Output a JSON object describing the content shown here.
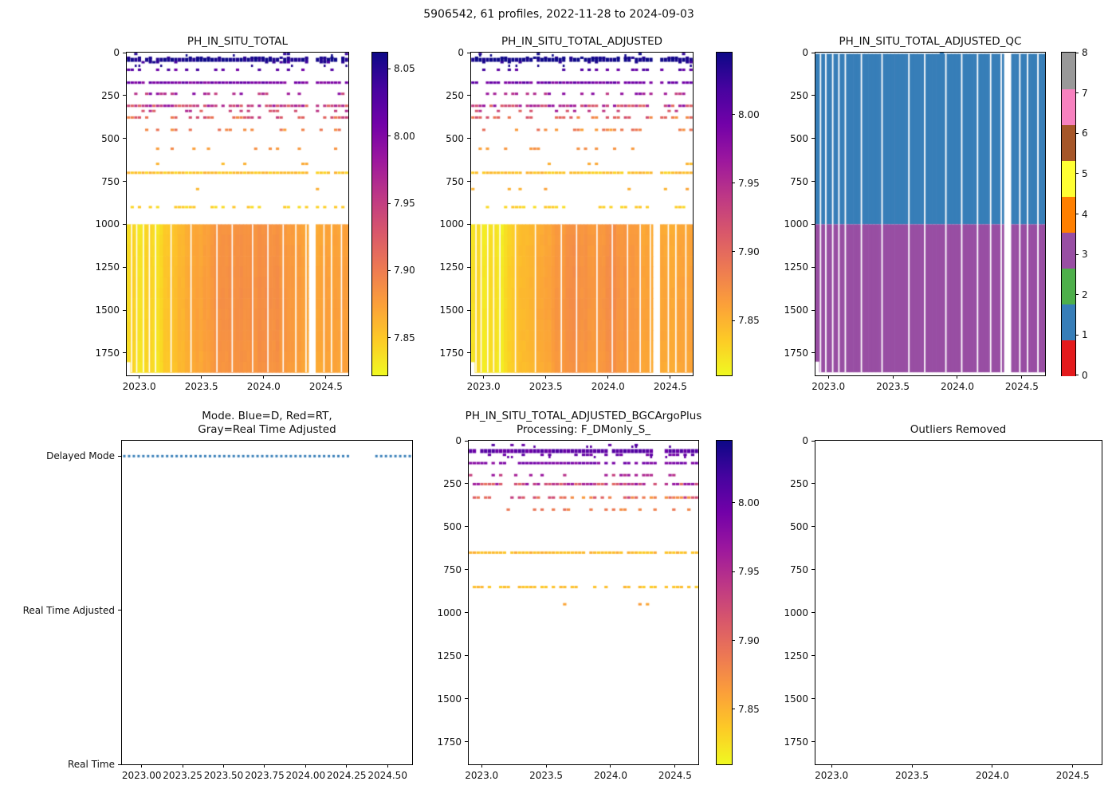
{
  "figure": {
    "title": "5906542, 61 profiles, 2022-11-28 to 2024-09-03"
  },
  "colors": {
    "plasma_stops": [
      [
        0,
        "#0d0887"
      ],
      [
        0.111,
        "#46039f"
      ],
      [
        0.222,
        "#7201a8"
      ],
      [
        0.333,
        "#9c179e"
      ],
      [
        0.444,
        "#bd3786"
      ],
      [
        0.556,
        "#d8576b"
      ],
      [
        0.667,
        "#ed7953"
      ],
      [
        0.778,
        "#fb9f3a"
      ],
      [
        0.889,
        "#fdca26"
      ],
      [
        1,
        "#f0f921"
      ]
    ],
    "qc_palette": [
      "#e41a1c",
      "#377eb8",
      "#4daf4a",
      "#984ea3",
      "#ff7f00",
      "#ffff33",
      "#a65628",
      "#f781bf",
      "#999999"
    ],
    "mode_dot": "#377eb8"
  },
  "profiles": {
    "count": 61,
    "float_id": "5906542",
    "date_start": "2022-11-28",
    "date_end": "2024-09-03",
    "gap_fracs": [
      0.022,
      0.045,
      0.075,
      0.102,
      0.13,
      0.2,
      0.29,
      0.407,
      0.476,
      0.568,
      0.637,
      0.706,
      0.763,
      0.809,
      0.89,
      0.924,
      0.969
    ],
    "wide_gap": [
      0.822,
      0.855
    ]
  },
  "chart_data": [
    {
      "id": "ph_total",
      "type": "heatmap",
      "render": "ph_heatmap",
      "seed": 3,
      "title_lines": [
        "PH_IN_SITU_TOTAL"
      ],
      "xlim": [
        2022.9,
        2024.68
      ],
      "ylim": [
        0,
        1880
      ],
      "x_tick_values": [
        2023.0,
        2023.5,
        2024.0,
        2024.5
      ],
      "x_tick_labels": [
        "2023.0",
        "2023.5",
        "2024.0",
        "2024.5"
      ],
      "y_tick_values": [
        0,
        250,
        500,
        750,
        1000,
        1250,
        1500,
        1750
      ],
      "y_tick_labels": [
        "0",
        "250",
        "500",
        "750",
        "1000",
        "1250",
        "1500",
        "1750"
      ],
      "vmin": 7.822,
      "vmax": 8.062,
      "colorbar_tick_values": [
        8.05,
        8.0,
        7.95,
        7.9,
        7.85
      ],
      "colorbar_tick_labels": [
        "8.05",
        "8.00",
        "7.95",
        "7.90",
        "7.85"
      ],
      "bands": [
        {
          "depth": 8,
          "ph": 8.05,
          "density": 0.06,
          "jitter": 0.01,
          "px": 3
        },
        {
          "depth": 30,
          "ph": 8.052,
          "density": 0.4,
          "jitter": 0.012,
          "px": 3
        },
        {
          "depth": 42,
          "ph": 8.058,
          "density": 0.97,
          "jitter": 0.008,
          "px": 5
        },
        {
          "depth": 56,
          "ph": 8.045,
          "density": 0.3,
          "jitter": 0.015,
          "px": 3
        },
        {
          "depth": 100,
          "ph": 8.02,
          "density": 0.28,
          "jitter": 0.015,
          "px": 3
        },
        {
          "depth": 175,
          "ph": 8.005,
          "density": 0.88,
          "jitter": 0.015,
          "px": 3
        },
        {
          "depth": 240,
          "ph": 7.972,
          "density": 0.42,
          "jitter": 0.03,
          "px": 3
        },
        {
          "depth": 310,
          "ph": 7.952,
          "density": 0.9,
          "jitter": 0.04,
          "px": 3
        },
        {
          "depth": 340,
          "ph": 7.945,
          "density": 0.22,
          "jitter": 0.03,
          "px": 3
        },
        {
          "depth": 378,
          "ph": 7.915,
          "density": 0.55,
          "jitter": 0.035,
          "px": 3
        },
        {
          "depth": 450,
          "ph": 7.89,
          "density": 0.28,
          "jitter": 0.02,
          "px": 3
        },
        {
          "depth": 560,
          "ph": 7.882,
          "density": 0.12,
          "jitter": 0.01,
          "px": 3
        },
        {
          "depth": 648,
          "ph": 7.862,
          "density": 0.08,
          "jitter": 0.008,
          "px": 3
        },
        {
          "depth": 700,
          "ph": 7.853,
          "density": 0.92,
          "jitter": 0.012,
          "px": 3
        },
        {
          "depth": 795,
          "ph": 7.868,
          "density": 0.08,
          "jitter": 0.01,
          "px": 3
        },
        {
          "depth": 900,
          "ph": 7.845,
          "density": 0.5,
          "jitter": 0.008,
          "px": 3
        }
      ],
      "deep_block": {
        "top": 1000,
        "bottom": 1862,
        "first_col_bottom": 1800,
        "keypoints": [
          [
            0,
            7.833
          ],
          [
            0.03,
            7.846
          ],
          [
            0.06,
            7.828
          ],
          [
            0.1,
            7.843
          ],
          [
            0.14,
            7.831
          ],
          [
            0.18,
            7.85
          ],
          [
            0.23,
            7.858
          ],
          [
            0.3,
            7.866
          ],
          [
            0.38,
            7.878
          ],
          [
            0.47,
            7.885
          ],
          [
            0.56,
            7.882
          ],
          [
            0.64,
            7.887
          ],
          [
            0.72,
            7.878
          ],
          [
            0.8,
            7.872
          ],
          [
            0.87,
            7.869
          ],
          [
            0.94,
            7.872
          ],
          [
            1,
            7.874
          ]
        ]
      }
    },
    {
      "id": "ph_adj",
      "type": "heatmap",
      "render": "ph_heatmap",
      "seed": 11,
      "title_lines": [
        "PH_IN_SITU_TOTAL_ADJUSTED"
      ],
      "xlim": [
        2022.9,
        2024.68
      ],
      "ylim": [
        0,
        1880
      ],
      "x_tick_values": [
        2023.0,
        2023.5,
        2024.0,
        2024.5
      ],
      "x_tick_labels": [
        "2023.0",
        "2023.5",
        "2024.0",
        "2024.5"
      ],
      "y_tick_values": [
        0,
        250,
        500,
        750,
        1000,
        1250,
        1500,
        1750
      ],
      "y_tick_labels": [
        "0",
        "250",
        "500",
        "750",
        "1000",
        "1250",
        "1500",
        "1750"
      ],
      "vmin": 7.81,
      "vmax": 8.045,
      "colorbar_tick_values": [
        8.0,
        7.95,
        7.9,
        7.85
      ],
      "colorbar_tick_labels": [
        "8.00",
        "7.95",
        "7.90",
        "7.85"
      ],
      "bands": [
        {
          "depth": 8,
          "ph": 8.038,
          "density": 0.06,
          "jitter": 0.01,
          "px": 3
        },
        {
          "depth": 30,
          "ph": 8.04,
          "density": 0.4,
          "jitter": 0.012,
          "px": 3
        },
        {
          "depth": 42,
          "ph": 8.046,
          "density": 0.97,
          "jitter": 0.008,
          "px": 5
        },
        {
          "depth": 56,
          "ph": 8.033,
          "density": 0.3,
          "jitter": 0.015,
          "px": 3
        },
        {
          "depth": 100,
          "ph": 8.008,
          "density": 0.28,
          "jitter": 0.015,
          "px": 3
        },
        {
          "depth": 175,
          "ph": 7.993,
          "density": 0.88,
          "jitter": 0.015,
          "px": 3
        },
        {
          "depth": 240,
          "ph": 7.96,
          "density": 0.42,
          "jitter": 0.03,
          "px": 3
        },
        {
          "depth": 310,
          "ph": 7.94,
          "density": 0.9,
          "jitter": 0.04,
          "px": 3
        },
        {
          "depth": 340,
          "ph": 7.933,
          "density": 0.22,
          "jitter": 0.03,
          "px": 3
        },
        {
          "depth": 378,
          "ph": 7.903,
          "density": 0.55,
          "jitter": 0.035,
          "px": 3
        },
        {
          "depth": 450,
          "ph": 7.878,
          "density": 0.28,
          "jitter": 0.02,
          "px": 3
        },
        {
          "depth": 560,
          "ph": 7.87,
          "density": 0.12,
          "jitter": 0.01,
          "px": 3
        },
        {
          "depth": 648,
          "ph": 7.85,
          "density": 0.08,
          "jitter": 0.008,
          "px": 3
        },
        {
          "depth": 700,
          "ph": 7.841,
          "density": 0.92,
          "jitter": 0.012,
          "px": 3
        },
        {
          "depth": 795,
          "ph": 7.856,
          "density": 0.08,
          "jitter": 0.01,
          "px": 3
        },
        {
          "depth": 900,
          "ph": 7.833,
          "density": 0.5,
          "jitter": 0.008,
          "px": 3
        }
      ],
      "deep_block": {
        "top": 1000,
        "bottom": 1862,
        "first_col_bottom": 1800,
        "keypoints": [
          [
            0,
            7.818
          ],
          [
            0.03,
            7.831
          ],
          [
            0.06,
            7.813
          ],
          [
            0.1,
            7.828
          ],
          [
            0.14,
            7.816
          ],
          [
            0.18,
            7.835
          ],
          [
            0.23,
            7.843
          ],
          [
            0.3,
            7.851
          ],
          [
            0.38,
            7.863
          ],
          [
            0.47,
            7.87
          ],
          [
            0.56,
            7.867
          ],
          [
            0.64,
            7.872
          ],
          [
            0.72,
            7.863
          ],
          [
            0.8,
            7.857
          ],
          [
            0.87,
            7.854
          ],
          [
            0.94,
            7.857
          ],
          [
            1,
            7.859
          ]
        ]
      }
    },
    {
      "id": "qc",
      "type": "heatmap",
      "render": "qc_columns",
      "title_lines": [
        "PH_IN_SITU_TOTAL_ADJUSTED_QC"
      ],
      "xlim": [
        2022.9,
        2024.68
      ],
      "ylim": [
        0,
        1880
      ],
      "x_tick_values": [
        2023.0,
        2023.5,
        2024.0,
        2024.5
      ],
      "x_tick_labels": [
        "2023.0",
        "2023.5",
        "2024.0",
        "2024.5"
      ],
      "y_tick_values": [
        0,
        250,
        500,
        750,
        1000,
        1250,
        1500,
        1750
      ],
      "y_tick_labels": [
        "0",
        "250",
        "500",
        "750",
        "1000",
        "1250",
        "1500",
        "1750"
      ],
      "shallow_flag": 1,
      "deep_flag": 3,
      "surface": 7,
      "boundary": 1000,
      "bottom": 1862,
      "first_col_bottom": 1800,
      "full_surface_col": 33,
      "colorbar_tick_values": [
        8,
        7,
        6,
        5,
        4,
        3,
        2,
        1,
        0
      ],
      "colorbar_tick_labels": [
        "8",
        "7",
        "6",
        "5",
        "4",
        "3",
        "2",
        "1",
        "0"
      ]
    },
    {
      "id": "mode",
      "type": "scatter",
      "render": "mode_dots",
      "title_lines": [
        "Mode. Blue=D, Red=RT,",
        "Gray=Real Time Adjusted"
      ],
      "xlim": [
        2022.88,
        2024.65
      ],
      "ylim": [
        2.1,
        0
      ],
      "x_tick_values": [
        2023.0,
        2023.25,
        2023.5,
        2023.75,
        2024.0,
        2024.25,
        2024.5
      ],
      "x_tick_labels": [
        "2023.00",
        "2023.25",
        "2023.50",
        "2023.75",
        "2024.00",
        "2024.25",
        "2024.50"
      ],
      "y_tick_values": [
        2,
        1,
        0
      ],
      "y_tick_labels": [
        "Delayed Mode",
        "Real Time Adjusted",
        "Real Time"
      ],
      "dot_value": 2,
      "dot_gap_frac": [
        0.79,
        0.875
      ]
    },
    {
      "id": "bgc",
      "type": "heatmap",
      "render": "ph_heatmap",
      "seed": 27,
      "title_lines": [
        "PH_IN_SITU_TOTAL_ADJUSTED_BGCArgoPlus",
        "Processing: F_DMonly_S_"
      ],
      "xlim": [
        2022.9,
        2024.68
      ],
      "ylim": [
        0,
        1880
      ],
      "x_tick_values": [
        2023.0,
        2023.5,
        2024.0,
        2024.5
      ],
      "x_tick_labels": [
        "2023.0",
        "2023.5",
        "2024.0",
        "2024.5"
      ],
      "y_tick_values": [
        0,
        250,
        500,
        750,
        1000,
        1250,
        1500,
        1750
      ],
      "y_tick_labels": [
        "0",
        "250",
        "500",
        "750",
        "1000",
        "1250",
        "1500",
        "1750"
      ],
      "vmin": 7.81,
      "vmax": 8.045,
      "colorbar_tick_values": [
        8.0,
        7.95,
        7.9,
        7.85
      ],
      "colorbar_tick_labels": [
        "8.00",
        "7.95",
        "7.90",
        "7.85"
      ],
      "bands": [
        {
          "depth": 25,
          "ph": 8.0,
          "density": 0.12,
          "jitter": 0.01,
          "px": 3
        },
        {
          "depth": 60,
          "ph": 8.005,
          "density": 0.95,
          "jitter": 0.01,
          "px": 5
        },
        {
          "depth": 82,
          "ph": 7.995,
          "density": 0.3,
          "jitter": 0.012,
          "px": 3
        },
        {
          "depth": 130,
          "ph": 7.985,
          "density": 0.75,
          "jitter": 0.012,
          "px": 3
        },
        {
          "depth": 200,
          "ph": 7.952,
          "density": 0.3,
          "jitter": 0.02,
          "px": 3
        },
        {
          "depth": 252,
          "ph": 7.935,
          "density": 0.88,
          "jitter": 0.04,
          "px": 3
        },
        {
          "depth": 330,
          "ph": 7.905,
          "density": 0.55,
          "jitter": 0.04,
          "px": 3
        },
        {
          "depth": 400,
          "ph": 7.888,
          "density": 0.22,
          "jitter": 0.015,
          "px": 3
        },
        {
          "depth": 650,
          "ph": 7.845,
          "density": 0.92,
          "jitter": 0.01,
          "px": 3
        },
        {
          "depth": 850,
          "ph": 7.842,
          "density": 0.6,
          "jitter": 0.008,
          "px": 3
        },
        {
          "depth": 950,
          "ph": 7.862,
          "density": 0.06,
          "jitter": 0.005,
          "px": 3
        }
      ]
    },
    {
      "id": "outliers",
      "type": "scatter",
      "render": "empty",
      "title_lines": [
        "Outliers Removed"
      ],
      "xlim": [
        2022.9,
        2024.68
      ],
      "ylim": [
        0,
        1880
      ],
      "x_tick_values": [
        2023.0,
        2023.5,
        2024.0,
        2024.5
      ],
      "x_tick_labels": [
        "2023.0",
        "2023.5",
        "2024.0",
        "2024.5"
      ],
      "y_tick_values": [
        0,
        250,
        500,
        750,
        1000,
        1250,
        1500,
        1750
      ],
      "y_tick_labels": [
        "0",
        "250",
        "500",
        "750",
        "1000",
        "1250",
        "1500",
        "1750"
      ]
    }
  ]
}
